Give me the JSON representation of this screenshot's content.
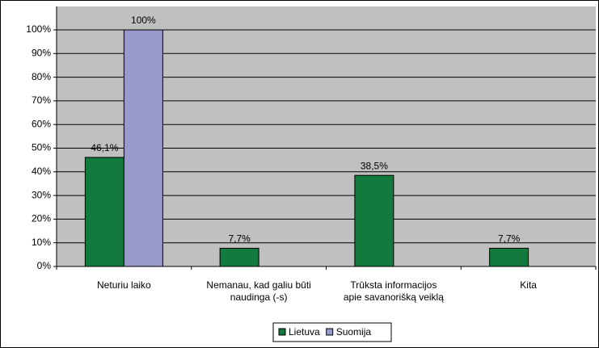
{
  "chart_data": {
    "type": "bar",
    "categories": [
      "Neturiu laiko",
      "Nemanau, kad galiu būti\nnaudinga (-s)",
      "Trūksta informacijos\napie savanorišką veiklą",
      "Kita"
    ],
    "series": [
      {
        "name": "Lietuva",
        "color": "#127a3c",
        "values": [
          46.1,
          7.7,
          38.5,
          7.7
        ],
        "value_labels": [
          "46,1%",
          "7,7%",
          "38,5%",
          "7,7%"
        ]
      },
      {
        "name": "Suomija",
        "color": "#9999cc",
        "values": [
          100,
          null,
          null,
          null
        ],
        "value_labels": [
          "100%",
          null,
          null,
          null
        ]
      }
    ],
    "ylim": [
      0,
      100
    ],
    "yticks": [
      {
        "value": 0,
        "label": "0%"
      },
      {
        "value": 10,
        "label": "10%"
      },
      {
        "value": 20,
        "label": "20%"
      },
      {
        "value": 30,
        "label": "30%"
      },
      {
        "value": 40,
        "label": "40%"
      },
      {
        "value": 50,
        "label": "50%"
      },
      {
        "value": 60,
        "label": "60%"
      },
      {
        "value": 70,
        "label": "70%"
      },
      {
        "value": 80,
        "label": "80%"
      },
      {
        "value": 90,
        "label": "90%"
      },
      {
        "value": 100,
        "label": "100%"
      }
    ],
    "grid": true,
    "legend": "bottom"
  }
}
